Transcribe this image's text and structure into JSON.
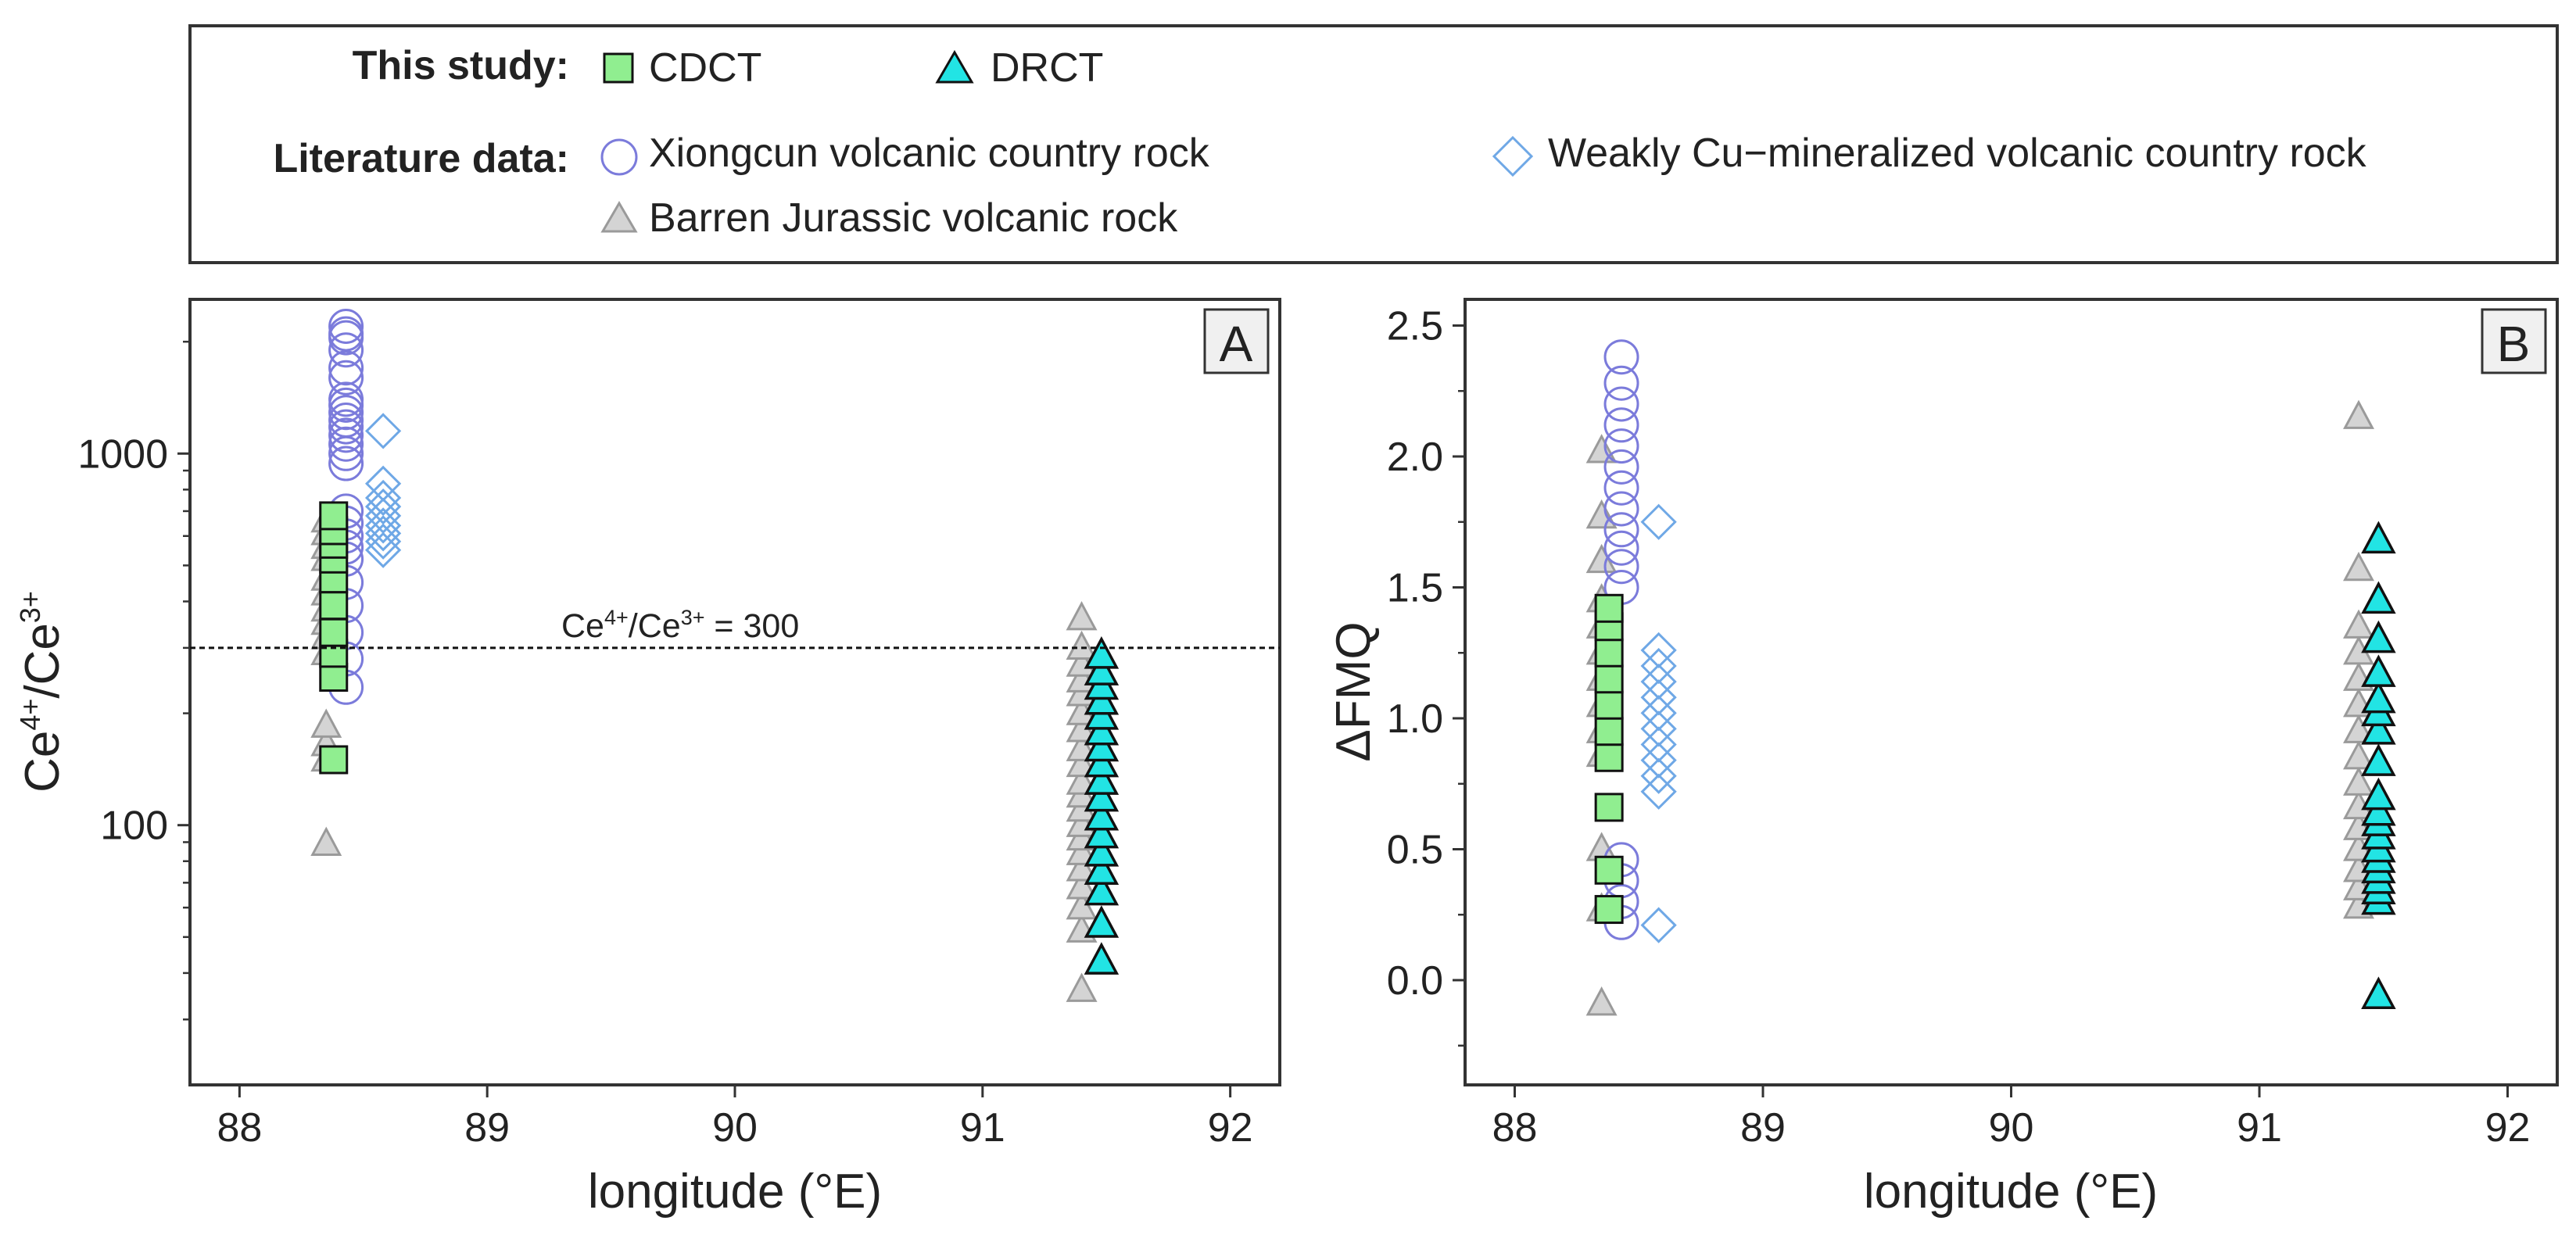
{
  "legend": {
    "this_study_label": "This study:",
    "literature_label": "Literature data:",
    "entries": {
      "cdct": "CDCT",
      "drct": "DRCT",
      "xiongcun": "Xiongcun volcanic country rock",
      "weakly": "Weakly Cu−mineralized volcanic country rock",
      "barren": "Barren Jurassic volcanic  rock"
    }
  },
  "colors": {
    "cdct_fill": "#90EE90",
    "drct_fill": "#22E4E4",
    "xiongcun_stroke": "#7B7BDB",
    "weakly_stroke": "#6FA8E6",
    "barren_fill": "#D4D4D4",
    "barren_stroke": "#9A9A9A",
    "marker_edge": "#111111"
  },
  "chart_data": [
    {
      "panel": "A",
      "type": "scatter",
      "yscale": "log",
      "xlabel": "longitude (°E)",
      "ylabel_base": "Ce",
      "ylabel_sup1": "4+",
      "ylabel_mid": "/Ce",
      "ylabel_sup2": "3+",
      "xlim": [
        87.8,
        92.2
      ],
      "ylim": [
        20,
        2600
      ],
      "xticks": [
        88,
        89,
        90,
        91,
        92
      ],
      "yticks": [
        100,
        1000
      ],
      "reference_line": {
        "y": 300,
        "label_base": "Ce",
        "label_sup1": "4+",
        "label_mid": "/Ce",
        "label_sup2": "3+",
        "label_tail": " = 300"
      },
      "series": [
        {
          "name": "Barren Jurassic volcanic  rock",
          "key": "barren",
          "x": 88.35,
          "y": [
            89,
            150,
            165,
            185,
            290,
            320,
            350,
            380,
            420,
            460,
            520,
            560,
            610,
            660
          ]
        },
        {
          "name": "Barren Jurassic volcanic  rock",
          "key": "barren",
          "x": 91.4,
          "y": [
            36,
            52,
            60,
            68,
            76,
            84,
            92,
            100,
            110,
            120,
            130,
            145,
            160,
            180,
            200,
            225,
            245,
            270,
            300,
            360
          ]
        },
        {
          "name": "Xiongcun volcanic country rock",
          "key": "xiongcun",
          "x": 88.43,
          "y": [
            235,
            280,
            330,
            390,
            450,
            520,
            560,
            600,
            650,
            700,
            940,
            1000,
            1060,
            1120,
            1180,
            1230,
            1290,
            1350,
            1400,
            1600,
            1700,
            1900,
            2050,
            2100,
            2200
          ]
        },
        {
          "name": "Weakly Cu−mineralized volcanic country rock",
          "key": "weakly",
          "x": 88.58,
          "y": [
            550,
            580,
            610,
            640,
            680,
            720,
            760,
            830,
            1150
          ]
        },
        {
          "name": "CDCT",
          "key": "cdct",
          "x": 88.38,
          "y": [
            150,
            250,
            290,
            330,
            390,
            460,
            520,
            570,
            620,
            680
          ]
        },
        {
          "name": "DRCT",
          "key": "drct",
          "x": 91.48,
          "y": [
            43,
            54,
            66,
            75,
            84,
            94,
            105,
            118,
            131,
            146,
            161,
            178,
            196,
            215,
            236,
            258,
            286
          ]
        }
      ]
    },
    {
      "panel": "B",
      "type": "scatter",
      "yscale": "linear",
      "xlabel": "longitude (°E)",
      "ylabel": "ΔFMQ",
      "xlim": [
        87.8,
        92.2
      ],
      "ylim": [
        -0.4,
        2.6
      ],
      "xticks": [
        88,
        89,
        90,
        91,
        92
      ],
      "yticks": [
        0.0,
        0.5,
        1.0,
        1.5,
        2.0,
        2.5
      ],
      "series": [
        {
          "name": "Barren Jurassic volcanic  rock",
          "key": "barren",
          "x": 88.35,
          "y": [
            -0.09,
            0.27,
            0.5,
            0.86,
            0.95,
            1.05,
            1.15,
            1.25,
            1.35,
            1.45,
            1.6,
            1.77,
            2.02
          ]
        },
        {
          "name": "Barren Jurassic volcanic  rock",
          "key": "barren",
          "x": 91.4,
          "y": [
            0.28,
            0.35,
            0.42,
            0.5,
            0.58,
            0.66,
            0.75,
            0.85,
            0.95,
            1.05,
            1.15,
            1.25,
            1.35,
            1.57,
            2.15
          ]
        },
        {
          "name": "Xiongcun volcanic country rock",
          "key": "xiongcun",
          "x": 88.43,
          "y": [
            0.22,
            0.3,
            0.38,
            0.46,
            1.5,
            1.58,
            1.65,
            1.72,
            1.8,
            1.88,
            1.96,
            2.04,
            2.12,
            2.2,
            2.28,
            2.38
          ]
        },
        {
          "name": "Weakly Cu−mineralized volcanic country rock",
          "key": "weakly",
          "x": 88.58,
          "y": [
            0.21,
            0.72,
            0.78,
            0.84,
            0.9,
            0.96,
            1.02,
            1.08,
            1.14,
            1.2,
            1.26,
            1.75
          ]
        },
        {
          "name": "CDCT",
          "key": "cdct",
          "x": 88.38,
          "y": [
            0.27,
            0.42,
            0.66,
            0.85,
            0.95,
            1.05,
            1.15,
            1.25,
            1.35,
            1.42
          ]
        },
        {
          "name": "DRCT",
          "key": "drct",
          "x": 91.48,
          "y": [
            -0.06,
            0.3,
            0.34,
            0.38,
            0.42,
            0.46,
            0.5,
            0.55,
            0.6,
            0.64,
            0.7,
            0.83,
            0.95,
            1.02,
            1.07,
            1.17,
            1.3,
            1.45,
            1.68
          ]
        }
      ]
    }
  ]
}
